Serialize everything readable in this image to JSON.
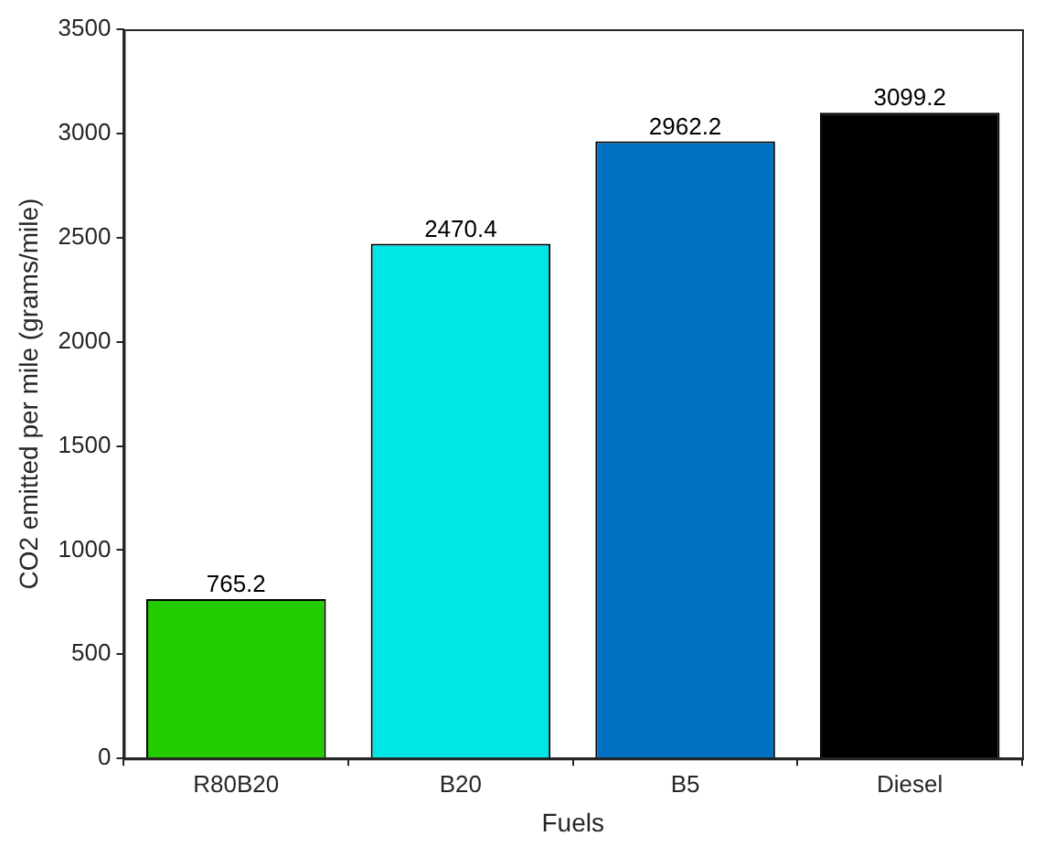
{
  "chart_data": {
    "type": "bar",
    "xlabel": "Fuels",
    "ylabel": "CO2 emitted per mile (grams/mile)",
    "categories": [
      "R80B20",
      "B20",
      "B5",
      "Diesel"
    ],
    "values": [
      765.2,
      2470.4,
      2962.2,
      3099.2
    ],
    "colors": [
      "#22cc00",
      "#00e5e5",
      "#0070c0",
      "#000000"
    ],
    "ylim": [
      0,
      3500
    ],
    "yticks": [
      0,
      500,
      1000,
      1500,
      2000,
      2500,
      3000,
      3500
    ],
    "data_labels": true,
    "grid": false,
    "legend": false
  }
}
